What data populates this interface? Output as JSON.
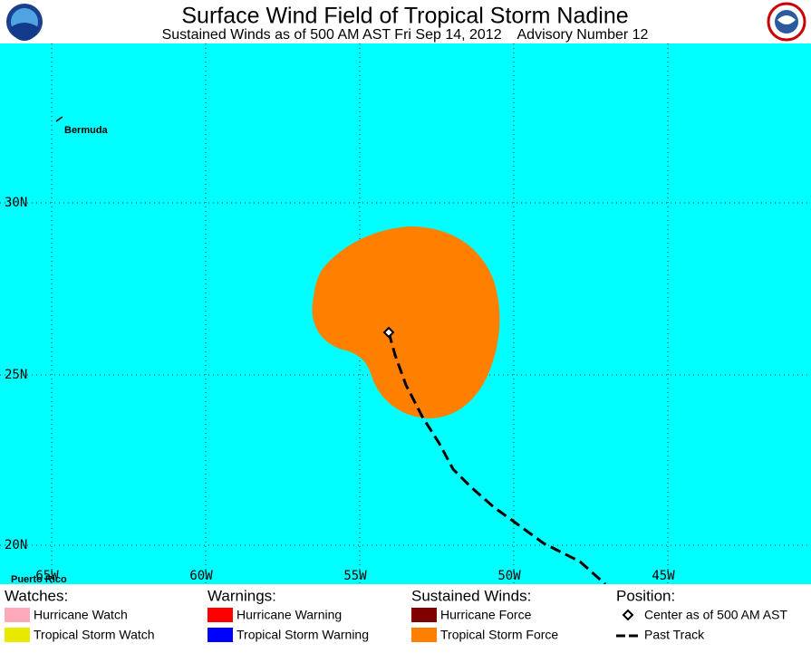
{
  "header": {
    "title": "Surface Wind Field of Tropical Storm Nadine",
    "subtitle": "Sustained Winds as of 500 AM AST Fri Sep 14, 2012    Advisory Number 12"
  },
  "map": {
    "places": [
      "Bermuda",
      "Puerto Rico"
    ],
    "latitude_labels": [
      "30N",
      "25N",
      "20N"
    ],
    "longitude_labels": [
      "65W",
      "60W",
      "55W",
      "50W",
      "45W"
    ]
  },
  "legend": {
    "watches": {
      "title": "Watches:",
      "items": [
        "Hurricane Watch",
        "Tropical Storm Watch"
      ]
    },
    "warnings": {
      "title": "Warnings:",
      "items": [
        "Hurricane Warning",
        "Tropical Storm Warning"
      ]
    },
    "winds": {
      "title": "Sustained Winds:",
      "items": [
        "Hurricane Force",
        "Tropical Storm Force"
      ]
    },
    "position": {
      "title": "Position:",
      "items": [
        "Center as of 500 AM AST",
        "Past Track"
      ]
    }
  }
}
